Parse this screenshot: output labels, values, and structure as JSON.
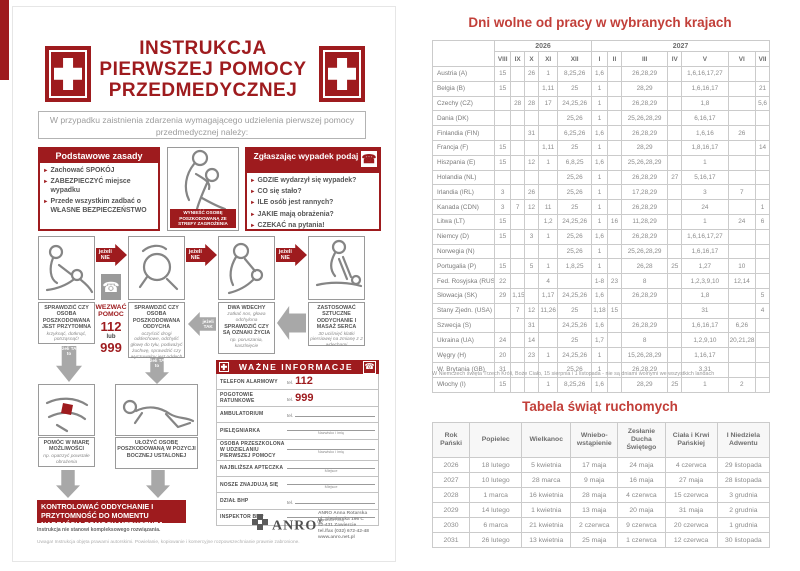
{
  "poster": {
    "title_lines": [
      "INSTRUKCJA",
      "PIERWSZEJ  POMOCY",
      "PRZEDMEDYCZNEJ"
    ],
    "intro": "W przypadku zaistnienia zdarzenia wymagającego udzielenia pierwszej pomocy przedmedycznej należy:",
    "basics": {
      "header": "Podstawowe zasady",
      "items": [
        "Zachować SPOKÓJ",
        "ZABEZPIECZYĆ miejsce wypadku",
        "Przede wszystkim zadbać o WŁASNE BEZPIECZEŃSTWO"
      ]
    },
    "rescue_caption": "WYNIEŚĆ OSOBĘ POSZKODOWANĄ ZE STREFY ZAGROŻENIA",
    "report": {
      "header": "Zgłaszając wypadek podaj",
      "items": [
        "GDZIE wydarzył się wypadek?",
        "CO się stało?",
        "ILE osób jest rannych?",
        "JAKIE mają obrażenia?",
        "CZEKAĆ na pytania!"
      ]
    },
    "flow": {
      "if_not": "jeżeli NIE",
      "if_yes": "jeżeli TAK",
      "if_yes_to": "jeżeli TAK to",
      "step_conscious": {
        "title": "SPRAWDZIĆ CZY OSOBA POSZKODOWANA JEST PRZYTOMNA",
        "note": "krzyknąć, dotknąć, potrząsnąć!"
      },
      "call": {
        "label": "WEZWAĆ POMOC",
        "number1": "112",
        "conjunction": "lub",
        "number2": "999"
      },
      "step_breathing": {
        "title": "SPRAWDZIĆ CZY OSOBA POSZKODOWANA ODDYCHA",
        "note": "oczyścić drogi oddechowe, odchylić głowę do tyłu, podważyć żuchwę, sprawdzić czy wyczuwalny jest oddech"
      },
      "step_breaths": {
        "title": "DWA WDECHY",
        "note": "zatkać nos, głowa odchylona",
        "title2": "SPRAWDZIĆ CZY SĄ OZNAKI ŻYCIA",
        "note2": "np. poruszania, kaszlnięcie"
      },
      "step_cpr": {
        "title": "ZASTOSOWAĆ SZTUCZNE ODDYCHANIE I MASAŻ SERCA",
        "note": "30 uciśnięć klatki piersiowej na zmianę z 2 wdechami"
      },
      "step_help": {
        "title": "POMÓC W MIARĘ MOŻLIWOŚCI",
        "note": "np. opatrzyć powstałe obrażenia"
      },
      "step_recovery": {
        "title": "UŁOŻYĆ OSOBĘ POSZKODOWANĄ W POZYCJI BOCZNEJ USTALONEJ"
      }
    },
    "banner": "KONTROLOWAĆ ODDYCHANIE I PRZYTOMNOŚĆ DO MOMENTU NADEJŚCIA POMOCY MEDYCZNEJ",
    "disclaimer": "Instrukcja nie stanowi kompleksowego rozwiązania.",
    "copyright": "Uwaga! Instrukcja objęta prawami autorskimi. Powielanie, kopiowanie i komercyjne rozpowszechnianie prawnie zabronione.",
    "info_panel": {
      "header": "WAŻNE  INFORMACJE",
      "rows": [
        {
          "label": "TELEFON ALARMOWY",
          "prefix": "tel.",
          "value": "112"
        },
        {
          "label": "POGOTOWIE RATUNKOWE",
          "prefix": "tel.",
          "value": "999"
        },
        {
          "label": "AMBULATORIUM",
          "prefix": "tel.",
          "line": true
        },
        {
          "label": "PIELĘGNIARKA",
          "hint": "Nazwisko i imię",
          "line": true
        },
        {
          "label": "OSOBA PRZESZKOLONA W UDZIELANIU PIERWSZEJ POMOCY",
          "hint": "Nazwisko i imię",
          "line": true
        },
        {
          "label": "NAJBLIŻSZA APTECZKA",
          "hint": "Miejsce",
          "line": true
        },
        {
          "label": "NOSZE ZNAJDUJĄ SIĘ",
          "hint": "Miejsce",
          "line": true
        },
        {
          "label": "DZIAŁ BHP",
          "prefix": "tel.",
          "line": true
        },
        {
          "label": "INSPEKTOR BHP",
          "hint": "Nazwisko i imię",
          "line": true
        }
      ]
    },
    "brand": {
      "name": "ANRO",
      "reg": "®",
      "address_lines": [
        "ANRO Anna Rotarska",
        "ul. Siewierska 196 C",
        "42-431 Zawiercie",
        "tel./fax (032) 672-42-48",
        "www.anro.net.pl"
      ]
    }
  },
  "holidays": {
    "title": "Dni wolne od pracy w wybranych krajach",
    "year_groups": [
      {
        "label": "2026",
        "cols": 5
      },
      {
        "label": "2027",
        "cols": 7
      }
    ],
    "months": [
      "VIII",
      "IX",
      "X",
      "XI",
      "XII",
      "I",
      "II",
      "III",
      "IV",
      "V",
      "VI",
      "VII"
    ],
    "rows": [
      [
        "Austria (A)",
        "15",
        "",
        "26",
        "1",
        "8,25,26",
        "1,6",
        "",
        "26,28,29",
        "",
        "1,6,16,17,27",
        "",
        ""
      ],
      [
        "Belgia (B)",
        "15",
        "",
        "",
        "1,11",
        "25",
        "1",
        "",
        "28,29",
        "",
        "1,6,16,17",
        "",
        "21"
      ],
      [
        "Czechy (CZ)",
        "",
        "28",
        "28",
        "17",
        "24,25,26",
        "1",
        "",
        "26,28,29",
        "",
        "1,8",
        "",
        "5,6"
      ],
      [
        "Dania (DK)",
        "",
        "",
        "",
        "",
        "25,26",
        "1",
        "",
        "25,26,28,29",
        "",
        "6,16,17",
        "",
        ""
      ],
      [
        "Finlandia (FIN)",
        "",
        "",
        "31",
        "",
        "6,25,26",
        "1,6",
        "",
        "26,28,29",
        "",
        "1,6,16",
        "26",
        ""
      ],
      [
        "Francja (F)",
        "15",
        "",
        "",
        "1,11",
        "25",
        "1",
        "",
        "28,29",
        "",
        "1,8,16,17",
        "",
        "14"
      ],
      [
        "Hiszpania (E)",
        "15",
        "",
        "12",
        "1",
        "6,8,25",
        "1,6",
        "",
        "25,26,28,29",
        "",
        "1",
        "",
        ""
      ],
      [
        "Holandia (NL)",
        "",
        "",
        "",
        "",
        "25,26",
        "1",
        "",
        "26,28,29",
        "27",
        "5,16,17",
        "",
        ""
      ],
      [
        "Irlandia (IRL)",
        "3",
        "",
        "26",
        "",
        "25,26",
        "1",
        "",
        "17,28,29",
        "",
        "3",
        "7",
        ""
      ],
      [
        "Kanada (CDN)",
        "3",
        "7",
        "12",
        "11",
        "25",
        "1",
        "",
        "26,28,29",
        "",
        "24",
        "",
        "1"
      ],
      [
        "Litwa (LT)",
        "15",
        "",
        "",
        "1,2",
        "24,25,26",
        "1",
        "16",
        "11,28,29",
        "",
        "1",
        "24",
        "6"
      ],
      [
        "Niemcy (D)",
        "15",
        "",
        "3",
        "1",
        "25,26",
        "1,6",
        "",
        "26,28,29",
        "",
        "1,6,16,17,27",
        "",
        ""
      ],
      [
        "Norwegia (N)",
        "",
        "",
        "",
        "",
        "25,26",
        "1",
        "",
        "25,26,28,29",
        "",
        "1,6,16,17",
        "",
        ""
      ],
      [
        "Portugalia (P)",
        "15",
        "",
        "5",
        "1",
        "1,8,25",
        "1",
        "",
        "26,28",
        "25",
        "1,27",
        "10",
        ""
      ],
      [
        "Fed. Rosyjska (RUS)",
        "22",
        "",
        "",
        "4",
        "",
        "1-8",
        "23",
        "8",
        "",
        "1,2,3,9,10",
        "12,14",
        ""
      ],
      [
        "Słowacja (SK)",
        "29",
        "1,15",
        "",
        "1,17",
        "24,25,26",
        "1,6",
        "",
        "26,28,29",
        "",
        "1,8",
        "",
        "5"
      ],
      [
        "Stany Zjedn. (USA)",
        "",
        "7",
        "12",
        "11,26",
        "25",
        "1,18",
        "15",
        "",
        "",
        "31",
        "",
        "4"
      ],
      [
        "Szwecja (S)",
        "",
        "",
        "31",
        "",
        "24,25,26",
        "1,6",
        "",
        "26,28,29",
        "",
        "1,6,16,17",
        "6,26",
        ""
      ],
      [
        "Ukraina (UA)",
        "24",
        "",
        "14",
        "",
        "25",
        "1,7",
        "",
        "8",
        "",
        "1,2,9,10",
        "20,21,28",
        ""
      ],
      [
        "Węgry (H)",
        "20",
        "",
        "23",
        "1",
        "24,25,26",
        "1",
        "",
        "15,26,28,29",
        "",
        "1,16,17",
        "",
        ""
      ],
      [
        "W. Brytania (GB)",
        "31",
        "",
        "",
        "",
        "25,26",
        "1",
        "",
        "26,28,29",
        "",
        "3,31",
        "",
        ""
      ],
      [
        "Włochy (I)",
        "15",
        "",
        "",
        "1",
        "8,25,26",
        "1,6",
        "",
        "28,29",
        "25",
        "1",
        "2",
        ""
      ]
    ],
    "footnote": "W Niemczech święta Trzech Króli, Boże Ciało, 15 sierpnia i 1 listopada - nie są dniami wolnymi we wszystkich landach"
  },
  "feasts": {
    "title": "Tabela świąt ruchomych",
    "headers": [
      "Rok Pański",
      "Popielec",
      "Wielkanoc",
      "Wniebo-wstąpienie",
      "Zesłanie Ducha Świętego",
      "Ciała i Krwi Pańskiej",
      "I Niedziela Adwentu"
    ],
    "rows": [
      [
        "2026",
        "18 lutego",
        "5 kwietnia",
        "17 maja",
        "24 maja",
        "4 czerwca",
        "29 listopada"
      ],
      [
        "2027",
        "10 lutego",
        "28 marca",
        "9 maja",
        "16 maja",
        "27 maja",
        "28 listopada"
      ],
      [
        "2028",
        "1 marca",
        "16 kwietnia",
        "28 maja",
        "4 czerwca",
        "15 czerwca",
        "3 grudnia"
      ],
      [
        "2029",
        "14 lutego",
        "1 kwietnia",
        "13 maja",
        "20 maja",
        "31 maja",
        "2 grudnia"
      ],
      [
        "2030",
        "6 marca",
        "21 kwietnia",
        "2 czerwca",
        "9 czerwca",
        "20 czerwca",
        "1 grudnia"
      ],
      [
        "2031",
        "26 lutego",
        "13 kwietnia",
        "25 maja",
        "1 czerwca",
        "12 czerwca",
        "30 listopada"
      ]
    ]
  },
  "colors": {
    "poster_red": "#9e1b1e",
    "table_title_red": "#c23f39"
  }
}
